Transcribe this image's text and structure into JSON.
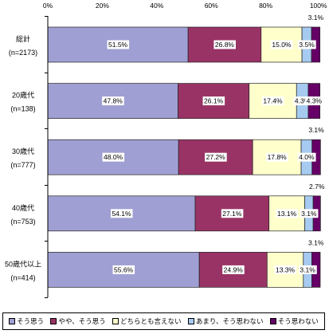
{
  "chart_data": {
    "type": "bar",
    "orientation": "horizontal",
    "stacked": true,
    "normalized": true,
    "x_axis_position": "top",
    "xlim": [
      0,
      100
    ],
    "x_ticks": [
      "0%",
      "20%",
      "40%",
      "60%",
      "80%",
      "100%"
    ],
    "grid": false,
    "legend": "bottom",
    "categories": [
      "総計",
      "20歳代",
      "30歳代",
      "40歳代",
      "50歳代以上"
    ],
    "category_sublabels": [
      "(n=2173)",
      "(n=138)",
      "(n=777)",
      "(n=753)",
      "(n=414)"
    ],
    "series": [
      {
        "name": "そう思う",
        "color": "#9f9fd3",
        "values": [
          51.5,
          47.8,
          48.0,
          54.1,
          55.6
        ],
        "labels": [
          "51.5%",
          "47.8%",
          "48.0%",
          "54.1%",
          "55.6%"
        ]
      },
      {
        "name": "やや、そう思う",
        "color": "#993366",
        "values": [
          26.8,
          26.1,
          27.2,
          27.1,
          24.9
        ],
        "labels": [
          "26.8%",
          "26.1%",
          "27.2%",
          "27.1%",
          "24.9%"
        ]
      },
      {
        "name": "どちらとも言えない",
        "color": "#ffffcc",
        "values": [
          15.0,
          17.4,
          17.8,
          13.1,
          13.3
        ],
        "labels": [
          "15.0%",
          "17.4%",
          "17.8%",
          "13.1%",
          "13.3%"
        ]
      },
      {
        "name": "あまり、そう思わない",
        "color": "#a6caf0",
        "values": [
          3.5,
          4.3,
          4.0,
          3.1,
          3.1
        ],
        "labels": [
          "3.5%",
          "4.3%",
          "4.0%",
          "3.1%",
          "3.1%"
        ]
      },
      {
        "name": "そう思わない",
        "color": "#660066",
        "values": [
          3.1,
          4.3,
          3.1,
          2.7,
          3.1
        ],
        "labels": [
          "3.1%",
          "4.3%",
          "3.1%",
          "2.7%",
          "3.1%"
        ]
      }
    ]
  }
}
